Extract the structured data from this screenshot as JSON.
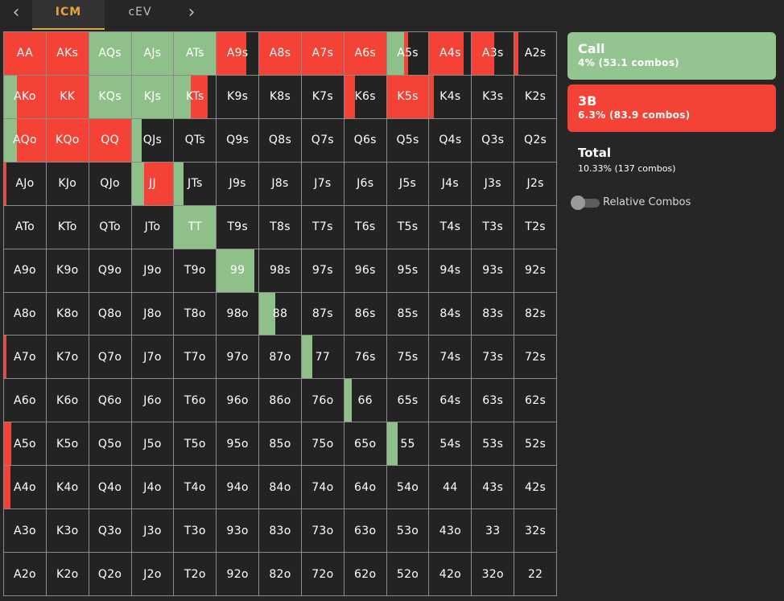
{
  "colors": {
    "call": "#8fc08a",
    "raise": "#f44336",
    "fold": "#232323",
    "accent": "#e8a43a",
    "call_card": "#94c591",
    "raise_card": "#f44336"
  },
  "nav": {
    "prev_icon": "‹",
    "next_icon": "›"
  },
  "tabs": [
    {
      "label": "ICM",
      "active": true
    },
    {
      "label": "cEV",
      "active": false
    }
  ],
  "legend": {
    "call": {
      "title": "Call",
      "summary": "4% (53.1 combos)"
    },
    "raise": {
      "title": "3B",
      "summary": "6.3% (83.9 combos)"
    },
    "total": {
      "title": "Total",
      "summary": "10.33% (137 combos)"
    },
    "relative_combos": {
      "label": "Relative Combos",
      "enabled": false
    }
  },
  "grid": {
    "rows": [
      [
        [
          "AA",
          0,
          100
        ],
        [
          "AKs",
          0,
          100
        ],
        [
          "AQs",
          100,
          0
        ],
        [
          "AJs",
          100,
          0
        ],
        [
          "ATs",
          100,
          0
        ],
        [
          "A9s",
          0,
          70
        ],
        [
          "A8s",
          0,
          100
        ],
        [
          "A7s",
          0,
          100
        ],
        [
          "A6s",
          0,
          100
        ],
        [
          "A5s",
          42,
          9
        ],
        [
          "A4s",
          0,
          82
        ],
        [
          "A3s",
          0,
          53
        ],
        [
          "A2s",
          0,
          10
        ]
      ],
      [
        [
          "AKo",
          30,
          70
        ],
        [
          "KK",
          0,
          100
        ],
        [
          "KQs",
          100,
          0
        ],
        [
          "KJs",
          100,
          0
        ],
        [
          "KTs",
          40,
          40
        ],
        [
          "K9s",
          0,
          0
        ],
        [
          "K8s",
          0,
          0
        ],
        [
          "K7s",
          0,
          0
        ],
        [
          "K6s",
          0,
          25
        ],
        [
          "K5s",
          0,
          100
        ],
        [
          "K4s",
          0,
          10
        ],
        [
          "K3s",
          0,
          0
        ],
        [
          "K2s",
          0,
          0
        ]
      ],
      [
        [
          "AQo",
          30,
          70
        ],
        [
          "KQo",
          0,
          100
        ],
        [
          "QQ",
          0,
          100
        ],
        [
          "QJs",
          25,
          0
        ],
        [
          "QTs",
          0,
          0
        ],
        [
          "Q9s",
          0,
          0
        ],
        [
          "Q8s",
          0,
          0
        ],
        [
          "Q7s",
          0,
          0
        ],
        [
          "Q6s",
          0,
          0
        ],
        [
          "Q5s",
          0,
          0
        ],
        [
          "Q4s",
          0,
          0
        ],
        [
          "Q3s",
          0,
          0
        ],
        [
          "Q2s",
          0,
          0
        ]
      ],
      [
        [
          "AJo",
          0,
          5
        ],
        [
          "KJo",
          0,
          0
        ],
        [
          "QJo",
          0,
          0
        ],
        [
          "JJ",
          30,
          70
        ],
        [
          "JTs",
          22,
          0
        ],
        [
          "J9s",
          0,
          0
        ],
        [
          "J8s",
          0,
          0
        ],
        [
          "J7s",
          0,
          0
        ],
        [
          "J6s",
          0,
          0
        ],
        [
          "J5s",
          0,
          0
        ],
        [
          "J4s",
          0,
          0
        ],
        [
          "J3s",
          0,
          0
        ],
        [
          "J2s",
          0,
          0
        ]
      ],
      [
        [
          "ATo",
          0,
          0
        ],
        [
          "KTo",
          0,
          0
        ],
        [
          "QTo",
          0,
          0
        ],
        [
          "JTo",
          0,
          0
        ],
        [
          "TT",
          100,
          0
        ],
        [
          "T9s",
          0,
          0
        ],
        [
          "T8s",
          0,
          0
        ],
        [
          "T7s",
          0,
          0
        ],
        [
          "T6s",
          0,
          0
        ],
        [
          "T5s",
          0,
          0
        ],
        [
          "T4s",
          0,
          0
        ],
        [
          "T3s",
          0,
          0
        ],
        [
          "T2s",
          0,
          0
        ]
      ],
      [
        [
          "A9o",
          0,
          0
        ],
        [
          "K9o",
          0,
          0
        ],
        [
          "Q9o",
          0,
          0
        ],
        [
          "J9o",
          0,
          0
        ],
        [
          "T9o",
          0,
          0
        ],
        [
          "99",
          90,
          0
        ],
        [
          "98s",
          0,
          0
        ],
        [
          "97s",
          0,
          0
        ],
        [
          "96s",
          0,
          0
        ],
        [
          "95s",
          0,
          0
        ],
        [
          "94s",
          0,
          0
        ],
        [
          "93s",
          0,
          0
        ],
        [
          "92s",
          0,
          0
        ]
      ],
      [
        [
          "A8o",
          0,
          0
        ],
        [
          "K8o",
          0,
          0
        ],
        [
          "Q8o",
          0,
          0
        ],
        [
          "J8o",
          0,
          0
        ],
        [
          "T8o",
          0,
          0
        ],
        [
          "98o",
          0,
          0
        ],
        [
          "88",
          38,
          0
        ],
        [
          "87s",
          0,
          0
        ],
        [
          "86s",
          0,
          0
        ],
        [
          "85s",
          0,
          0
        ],
        [
          "84s",
          0,
          0
        ],
        [
          "83s",
          0,
          0
        ],
        [
          "82s",
          0,
          0
        ]
      ],
      [
        [
          "A7o",
          0,
          5
        ],
        [
          "K7o",
          0,
          0
        ],
        [
          "Q7o",
          0,
          0
        ],
        [
          "J7o",
          0,
          0
        ],
        [
          "T7o",
          0,
          0
        ],
        [
          "97o",
          0,
          0
        ],
        [
          "87o",
          0,
          0
        ],
        [
          "77",
          25,
          0
        ],
        [
          "76s",
          0,
          0
        ],
        [
          "75s",
          0,
          0
        ],
        [
          "74s",
          0,
          0
        ],
        [
          "73s",
          0,
          0
        ],
        [
          "72s",
          0,
          0
        ]
      ],
      [
        [
          "A6o",
          0,
          0
        ],
        [
          "K6o",
          0,
          0
        ],
        [
          "Q6o",
          0,
          0
        ],
        [
          "J6o",
          0,
          0
        ],
        [
          "T6o",
          0,
          0
        ],
        [
          "96o",
          0,
          0
        ],
        [
          "86o",
          0,
          0
        ],
        [
          "76o",
          0,
          0
        ],
        [
          "66",
          17,
          0
        ],
        [
          "65s",
          0,
          0
        ],
        [
          "64s",
          0,
          0
        ],
        [
          "63s",
          0,
          0
        ],
        [
          "62s",
          0,
          0
        ]
      ],
      [
        [
          "A5o",
          0,
          17
        ],
        [
          "K5o",
          0,
          0
        ],
        [
          "Q5o",
          0,
          0
        ],
        [
          "J5o",
          0,
          0
        ],
        [
          "T5o",
          0,
          0
        ],
        [
          "95o",
          0,
          0
        ],
        [
          "85o",
          0,
          0
        ],
        [
          "75o",
          0,
          0
        ],
        [
          "65o",
          0,
          0
        ],
        [
          "55",
          25,
          0
        ],
        [
          "54s",
          0,
          0
        ],
        [
          "53s",
          0,
          0
        ],
        [
          "52s",
          0,
          0
        ]
      ],
      [
        [
          "A4o",
          0,
          15
        ],
        [
          "K4o",
          0,
          0
        ],
        [
          "Q4o",
          0,
          0
        ],
        [
          "J4o",
          0,
          0
        ],
        [
          "T4o",
          0,
          0
        ],
        [
          "94o",
          0,
          0
        ],
        [
          "84o",
          0,
          0
        ],
        [
          "74o",
          0,
          0
        ],
        [
          "64o",
          0,
          0
        ],
        [
          "54o",
          0,
          0
        ],
        [
          "44",
          0,
          0
        ],
        [
          "43s",
          0,
          0
        ],
        [
          "42s",
          0,
          0
        ]
      ],
      [
        [
          "A3o",
          0,
          0
        ],
        [
          "K3o",
          0,
          0
        ],
        [
          "Q3o",
          0,
          0
        ],
        [
          "J3o",
          0,
          0
        ],
        [
          "T3o",
          0,
          0
        ],
        [
          "93o",
          0,
          0
        ],
        [
          "83o",
          0,
          0
        ],
        [
          "73o",
          0,
          0
        ],
        [
          "63o",
          0,
          0
        ],
        [
          "53o",
          0,
          0
        ],
        [
          "43o",
          0,
          0
        ],
        [
          "33",
          0,
          0
        ],
        [
          "32s",
          0,
          0
        ]
      ],
      [
        [
          "A2o",
          0,
          0
        ],
        [
          "K2o",
          0,
          0
        ],
        [
          "Q2o",
          0,
          0
        ],
        [
          "J2o",
          0,
          0
        ],
        [
          "T2o",
          0,
          0
        ],
        [
          "92o",
          0,
          0
        ],
        [
          "82o",
          0,
          0
        ],
        [
          "72o",
          0,
          0
        ],
        [
          "62o",
          0,
          0
        ],
        [
          "52o",
          0,
          0
        ],
        [
          "42o",
          0,
          0
        ],
        [
          "32o",
          0,
          0
        ],
        [
          "22",
          0,
          0
        ]
      ]
    ]
  }
}
